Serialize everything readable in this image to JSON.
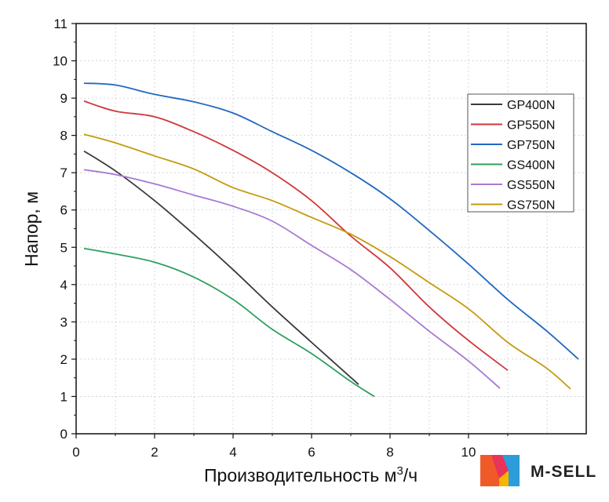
{
  "chart_data": {
    "type": "line",
    "xlabel": "Производительность м",
    "xlabel_sup": "3",
    "xlabel_suffix": "/ч",
    "ylabel": "Напор, м",
    "xlim": [
      0,
      13
    ],
    "ylim": [
      0,
      11
    ],
    "x_ticks": [
      0,
      2,
      4,
      6,
      8,
      10
    ],
    "y_ticks": [
      0,
      1,
      2,
      3,
      4,
      5,
      6,
      7,
      8,
      9,
      10,
      11
    ],
    "grid": true,
    "legend_position": "top-right",
    "series": [
      {
        "name": "GP400N",
        "color": "#3a3a3a",
        "points": [
          [
            0.2,
            7.58
          ],
          [
            1,
            7.05
          ],
          [
            2,
            6.25
          ],
          [
            3,
            5.35
          ],
          [
            4,
            4.4
          ],
          [
            5,
            3.4
          ],
          [
            6,
            2.45
          ],
          [
            7.2,
            1.32
          ]
        ]
      },
      {
        "name": "GP550N",
        "color": "#d0373a",
        "points": [
          [
            0.2,
            8.92
          ],
          [
            1,
            8.65
          ],
          [
            2,
            8.5
          ],
          [
            3,
            8.1
          ],
          [
            4,
            7.6
          ],
          [
            5,
            7.0
          ],
          [
            6,
            6.25
          ],
          [
            7,
            5.3
          ],
          [
            8,
            4.45
          ],
          [
            9,
            3.4
          ],
          [
            10,
            2.5
          ],
          [
            11,
            1.7
          ]
        ]
      },
      {
        "name": "GP750N",
        "color": "#2268c0",
        "points": [
          [
            0.2,
            9.4
          ],
          [
            1,
            9.35
          ],
          [
            2,
            9.1
          ],
          [
            3,
            8.9
          ],
          [
            4,
            8.6
          ],
          [
            5,
            8.1
          ],
          [
            6,
            7.6
          ],
          [
            7,
            7.0
          ],
          [
            8,
            6.3
          ],
          [
            9,
            5.45
          ],
          [
            10,
            4.55
          ],
          [
            11,
            3.6
          ],
          [
            12,
            2.75
          ],
          [
            12.8,
            2.0
          ]
        ]
      },
      {
        "name": "GS400N",
        "color": "#2fa060",
        "points": [
          [
            0.2,
            4.97
          ],
          [
            1,
            4.82
          ],
          [
            2,
            4.6
          ],
          [
            3,
            4.2
          ],
          [
            4,
            3.6
          ],
          [
            5,
            2.8
          ],
          [
            6,
            2.15
          ],
          [
            7,
            1.4
          ],
          [
            7.6,
            1.0
          ]
        ]
      },
      {
        "name": "GS550N",
        "color": "#a679d4",
        "points": [
          [
            0.2,
            7.08
          ],
          [
            1,
            6.95
          ],
          [
            2,
            6.7
          ],
          [
            3,
            6.4
          ],
          [
            4,
            6.1
          ],
          [
            5,
            5.7
          ],
          [
            6,
            5.05
          ],
          [
            7,
            4.4
          ],
          [
            8,
            3.6
          ],
          [
            9,
            2.75
          ],
          [
            10,
            1.95
          ],
          [
            10.8,
            1.22
          ]
        ]
      },
      {
        "name": "GS750N",
        "color": "#c59a0e",
        "points": [
          [
            0.2,
            8.03
          ],
          [
            1,
            7.8
          ],
          [
            2,
            7.45
          ],
          [
            3,
            7.1
          ],
          [
            4,
            6.6
          ],
          [
            5,
            6.25
          ],
          [
            6,
            5.8
          ],
          [
            7,
            5.35
          ],
          [
            8,
            4.75
          ],
          [
            9,
            4.05
          ],
          [
            10,
            3.35
          ],
          [
            11,
            2.45
          ],
          [
            12,
            1.75
          ],
          [
            12.6,
            1.2
          ]
        ]
      }
    ]
  },
  "watermark": {
    "brand": "M-SELL",
    "colors": [
      "#f05a28",
      "#e8335a",
      "#2d9cdb",
      "#f7b500"
    ]
  }
}
